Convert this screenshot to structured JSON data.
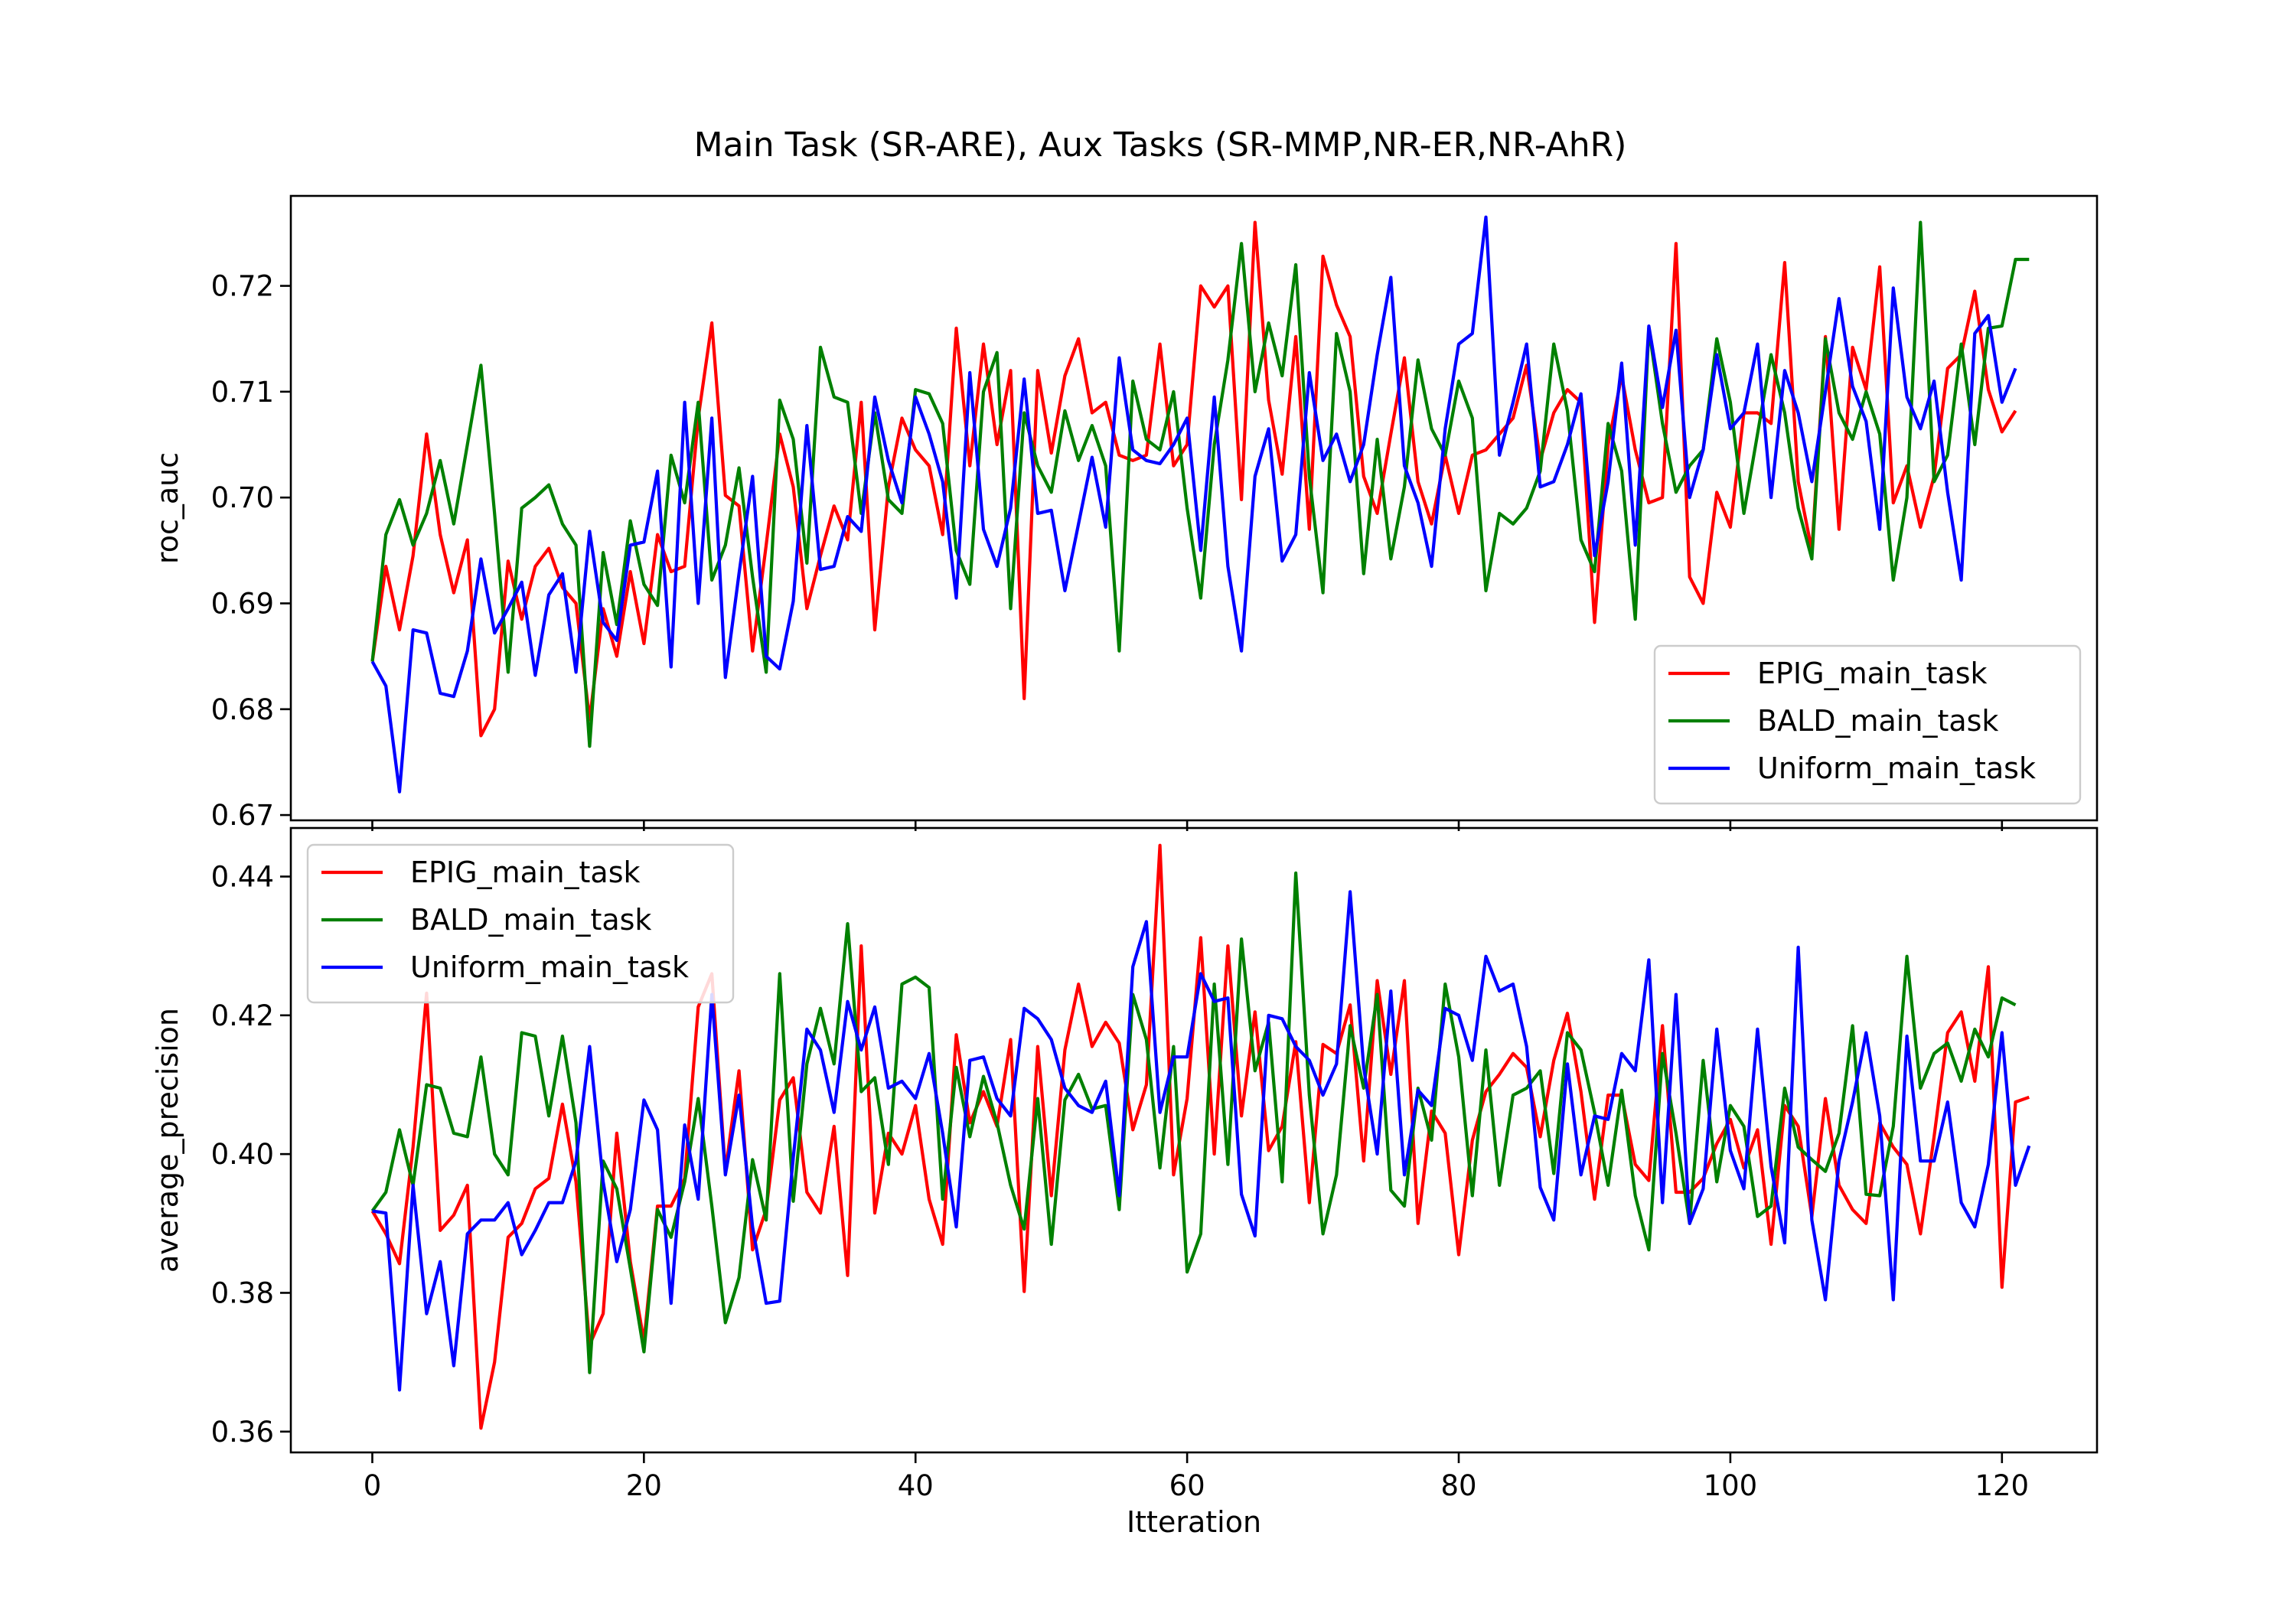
{
  "chart_data": {
    "title": "Main Task (SR-ARE), Aux Tasks (SR-MMP,NR-ER,NR-AhR)",
    "type": "line",
    "xlabel": "Itteration",
    "xlim": [
      -6,
      127
    ],
    "x_ticks": [
      0,
      20,
      40,
      60,
      80,
      100,
      120
    ],
    "x_tick_labels": [
      "0",
      "20",
      "40",
      "60",
      "80",
      "100",
      "120"
    ],
    "colors": {
      "EPIG_main_task": "#ff0000",
      "BALD_main_task": "#008000",
      "Uniform_main_task": "#0000ff"
    },
    "panels": [
      {
        "ylabel": "roc_auc",
        "ylim": [
          0.6695,
          0.7285
        ],
        "y_ticks": [
          0.67,
          0.68,
          0.69,
          0.7,
          0.71,
          0.72
        ],
        "y_tick_labels": [
          "0.67",
          "0.68",
          "0.69",
          "0.70",
          "0.71",
          "0.72"
        ],
        "legend_position": "lower-right",
        "series": [
          {
            "name": "EPIG_main_task",
            "values": [
              0.6845,
              0.6935,
              0.6875,
              0.6945,
              0.706,
              0.6965,
              0.691,
              0.696,
              0.6775,
              0.68,
              0.694,
              0.6885,
              0.6935,
              0.6952,
              0.6915,
              0.69,
              0.679,
              0.6895,
              0.685,
              0.693,
              0.6862,
              0.6965,
              0.693,
              0.6935,
              0.7075,
              0.7165,
              0.7002,
              0.6992,
              0.6855,
              0.6955,
              0.706,
              0.701,
              0.6895,
              0.6945,
              0.6992,
              0.696,
              0.709,
              0.6875,
              0.701,
              0.7075,
              0.7045,
              0.703,
              0.6965,
              0.716,
              0.703,
              0.7145,
              0.705,
              0.712,
              0.681,
              0.712,
              0.7042,
              0.7115,
              0.715,
              0.708,
              0.709,
              0.704,
              0.7035,
              0.704,
              0.7145,
              0.703,
              0.705,
              0.72,
              0.718,
              0.72,
              0.6998,
              0.726,
              0.7092,
              0.7022,
              0.7152,
              0.697,
              0.7228,
              0.7182,
              0.7152,
              0.702,
              0.6985,
              0.706,
              0.7132,
              0.7015,
              0.6975,
              0.704,
              0.6985,
              0.704,
              0.7045,
              0.706,
              0.7075,
              0.7125,
              0.7035,
              0.708,
              0.7102,
              0.709,
              0.6882,
              0.705,
              0.7115,
              0.7045,
              0.6995,
              0.7,
              0.724,
              0.6925,
              0.69,
              0.7005,
              0.6972,
              0.708,
              0.708,
              0.707,
              0.7222,
              0.7015,
              0.695,
              0.7152,
              0.697,
              0.7142,
              0.7102,
              0.7218,
              0.6995,
              0.703,
              0.6972,
              0.702,
              0.7122,
              0.7135,
              0.7195,
              0.7102,
              0.7062,
              0.7082
            ]
          },
          {
            "name": "BALD_main_task",
            "values": [
              0.6845,
              0.6965,
              0.6998,
              0.6955,
              0.6985,
              0.7035,
              0.6975,
              0.705,
              0.7125,
              0.6985,
              0.6835,
              0.699,
              0.7,
              0.7012,
              0.6975,
              0.6955,
              0.6765,
              0.6948,
              0.688,
              0.6978,
              0.6918,
              0.6898,
              0.704,
              0.6995,
              0.709,
              0.6922,
              0.6955,
              0.7028,
              0.6925,
              0.6835,
              0.7092,
              0.7055,
              0.6938,
              0.7142,
              0.7095,
              0.709,
              0.6985,
              0.708,
              0.6998,
              0.6985,
              0.7102,
              0.7098,
              0.707,
              0.695,
              0.6918,
              0.71,
              0.7137,
              0.6895,
              0.708,
              0.703,
              0.7005,
              0.7082,
              0.7035,
              0.7068,
              0.703,
              0.6855,
              0.711,
              0.7055,
              0.7045,
              0.71,
              0.699,
              0.6905,
              0.705,
              0.713,
              0.724,
              0.71,
              0.7165,
              0.7115,
              0.722,
              0.702,
              0.691,
              0.7155,
              0.71,
              0.6928,
              0.7055,
              0.6942,
              0.701,
              0.713,
              0.7065,
              0.704,
              0.711,
              0.7075,
              0.6912,
              0.6985,
              0.6975,
              0.699,
              0.7025,
              0.7145,
              0.7082,
              0.696,
              0.693,
              0.707,
              0.7025,
              0.6885,
              0.716,
              0.707,
              0.7005,
              0.703,
              0.7045,
              0.715,
              0.709,
              0.6985,
              0.706,
              0.7135,
              0.708,
              0.699,
              0.6942,
              0.715,
              0.708,
              0.7055,
              0.71,
              0.706,
              0.6922,
              0.7,
              0.726,
              0.7015,
              0.704,
              0.7145,
              0.705,
              0.716,
              0.7162,
              0.7225,
              0.7225
            ]
          },
          {
            "name": "Uniform_main_task",
            "values": [
              0.6845,
              0.6822,
              0.6722,
              0.6875,
              0.6872,
              0.6815,
              0.6812,
              0.6855,
              0.6942,
              0.6872,
              0.6895,
              0.692,
              0.6832,
              0.6908,
              0.6928,
              0.6835,
              0.6968,
              0.6882,
              0.6865,
              0.6955,
              0.6958,
              0.7025,
              0.684,
              0.709,
              0.69,
              0.7075,
              0.683,
              0.6928,
              0.702,
              0.685,
              0.6838,
              0.6902,
              0.7068,
              0.6932,
              0.6935,
              0.6982,
              0.6968,
              0.7095,
              0.7035,
              0.6995,
              0.7095,
              0.706,
              0.7015,
              0.6905,
              0.7118,
              0.697,
              0.6935,
              0.699,
              0.7112,
              0.6985,
              0.6988,
              0.6912,
              0.6975,
              0.7038,
              0.6972,
              0.7132,
              0.7045,
              0.7035,
              0.7032,
              0.705,
              0.7075,
              0.695,
              0.7095,
              0.6935,
              0.6855,
              0.702,
              0.7065,
              0.694,
              0.6965,
              0.7118,
              0.7035,
              0.706,
              0.7015,
              0.705,
              0.7135,
              0.7208,
              0.703,
              0.6995,
              0.6935,
              0.7065,
              0.7145,
              0.7155,
              0.7265,
              0.704,
              0.709,
              0.7145,
              0.701,
              0.7015,
              0.705,
              0.7098,
              0.6945,
              0.7015,
              0.7127,
              0.6955,
              0.7162,
              0.7085,
              0.7158,
              0.7,
              0.7045,
              0.7135,
              0.7065,
              0.708,
              0.7145,
              0.7,
              0.712,
              0.708,
              0.7015,
              0.71,
              0.7188,
              0.7105,
              0.7072,
              0.697,
              0.7198,
              0.7095,
              0.7065,
              0.711,
              0.7005,
              0.6922,
              0.7155,
              0.7172,
              0.709,
              0.7122
            ]
          }
        ]
      },
      {
        "ylabel": "average_precision",
        "ylim": [
          0.357,
          0.447
        ],
        "y_ticks": [
          0.36,
          0.38,
          0.4,
          0.42,
          0.44
        ],
        "y_tick_labels": [
          "0.36",
          "0.38",
          "0.40",
          "0.42",
          "0.44"
        ],
        "legend_position": "upper-left",
        "series": [
          {
            "name": "EPIG_main_task",
            "values": [
              0.3918,
              0.3885,
              0.3842,
              0.401,
              0.4232,
              0.389,
              0.3912,
              0.3955,
              0.3605,
              0.37,
              0.388,
              0.39,
              0.395,
              0.3965,
              0.4072,
              0.396,
              0.3725,
              0.377,
              0.403,
              0.3845,
              0.373,
              0.3925,
              0.3925,
              0.3965,
              0.4212,
              0.426,
              0.3975,
              0.412,
              0.3862,
              0.392,
              0.4078,
              0.411,
              0.3945,
              0.3915,
              0.404,
              0.3825,
              0.43,
              0.3915,
              0.403,
              0.4,
              0.407,
              0.3935,
              0.387,
              0.4172,
              0.4045,
              0.409,
              0.404,
              0.4165,
              0.3802,
              0.4155,
              0.394,
              0.415,
              0.4245,
              0.4155,
              0.419,
              0.416,
              0.4035,
              0.41,
              0.4445,
              0.397,
              0.408,
              0.4312,
              0.4,
              0.43,
              0.4055,
              0.4205,
              0.4005,
              0.404,
              0.4162,
              0.393,
              0.4158,
              0.4145,
              0.4215,
              0.399,
              0.425,
              0.4115,
              0.425,
              0.39,
              0.4062,
              0.403,
              0.3855,
              0.402,
              0.409,
              0.4115,
              0.4145,
              0.4125,
              0.4025,
              0.4135,
              0.4203,
              0.409,
              0.3935,
              0.4085,
              0.4085,
              0.3985,
              0.3962,
              0.4185,
              0.3945,
              0.3945,
              0.3965,
              0.4015,
              0.405,
              0.398,
              0.4035,
              0.387,
              0.407,
              0.404,
              0.391,
              0.408,
              0.3955,
              0.392,
              0.39,
              0.4045,
              0.401,
              0.3985,
              0.3885,
              0.4025,
              0.4175,
              0.4205,
              0.4105,
              0.427,
              0.3808,
              0.4075,
              0.4082
            ]
          },
          {
            "name": "BALD_main_task",
            "values": [
              0.3918,
              0.3945,
              0.4035,
              0.3955,
              0.41,
              0.4095,
              0.403,
              0.4025,
              0.414,
              0.4,
              0.397,
              0.4175,
              0.417,
              0.4055,
              0.417,
              0.4045,
              0.3685,
              0.399,
              0.395,
              0.3835,
              0.3715,
              0.392,
              0.388,
              0.396,
              0.408,
              0.3925,
              0.3757,
              0.3822,
              0.3992,
              0.3905,
              0.426,
              0.3932,
              0.413,
              0.421,
              0.413,
              0.4332,
              0.409,
              0.411,
              0.3985,
              0.4245,
              0.4255,
              0.424,
              0.3935,
              0.4125,
              0.4025,
              0.4112,
              0.4045,
              0.3955,
              0.3892,
              0.408,
              0.387,
              0.4078,
              0.4115,
              0.4065,
              0.407,
              0.392,
              0.423,
              0.4165,
              0.398,
              0.4155,
              0.383,
              0.3885,
              0.4245,
              0.3985,
              0.431,
              0.412,
              0.419,
              0.396,
              0.4405,
              0.4085,
              0.3885,
              0.397,
              0.4185,
              0.4095,
              0.423,
              0.3948,
              0.3925,
              0.4095,
              0.402,
              0.4245,
              0.414,
              0.394,
              0.415,
              0.3955,
              0.4085,
              0.4095,
              0.412,
              0.3972,
              0.4175,
              0.415,
              0.406,
              0.3955,
              0.4092,
              0.394,
              0.3862,
              0.4145,
              0.403,
              0.39,
              0.4135,
              0.396,
              0.407,
              0.404,
              0.391,
              0.3925,
              0.4095,
              0.401,
              0.3992,
              0.3975,
              0.403,
              0.4185,
              0.3942,
              0.394,
              0.404,
              0.4285,
              0.4095,
              0.4145,
              0.416,
              0.4105,
              0.418,
              0.414,
              0.4225,
              0.4215
            ]
          },
          {
            "name": "Uniform_main_task",
            "values": [
              0.3918,
              0.3915,
              0.366,
              0.3955,
              0.377,
              0.3845,
              0.3695,
              0.3885,
              0.3905,
              0.3905,
              0.393,
              0.3855,
              0.389,
              0.393,
              0.393,
              0.399,
              0.4155,
              0.396,
              0.3845,
              0.392,
              0.4078,
              0.4035,
              0.3785,
              0.4042,
              0.3935,
              0.423,
              0.397,
              0.4085,
              0.3895,
              0.3785,
              0.3788,
              0.3995,
              0.418,
              0.415,
              0.406,
              0.422,
              0.415,
              0.4212,
              0.4095,
              0.4105,
              0.408,
              0.4145,
              0.403,
              0.3895,
              0.4135,
              0.414,
              0.408,
              0.4055,
              0.421,
              0.4195,
              0.4165,
              0.4095,
              0.407,
              0.406,
              0.4105,
              0.394,
              0.427,
              0.4335,
              0.406,
              0.414,
              0.414,
              0.426,
              0.422,
              0.4225,
              0.3942,
              0.3882,
              0.42,
              0.4195,
              0.4155,
              0.4135,
              0.4085,
              0.413,
              0.4378,
              0.4125,
              0.4,
              0.4235,
              0.397,
              0.4092,
              0.407,
              0.421,
              0.42,
              0.4135,
              0.4285,
              0.4235,
              0.4245,
              0.4155,
              0.3952,
              0.3905,
              0.413,
              0.397,
              0.4055,
              0.405,
              0.4145,
              0.412,
              0.428,
              0.393,
              0.423,
              0.39,
              0.395,
              0.418,
              0.4005,
              0.395,
              0.418,
              0.3982,
              0.3872,
              0.4298,
              0.3905,
              0.379,
              0.399,
              0.4075,
              0.4175,
              0.4055,
              0.379,
              0.417,
              0.399,
              0.399,
              0.4075,
              0.393,
              0.3895,
              0.3985,
              0.4175,
              0.3955,
              0.4012
            ]
          }
        ]
      }
    ]
  }
}
